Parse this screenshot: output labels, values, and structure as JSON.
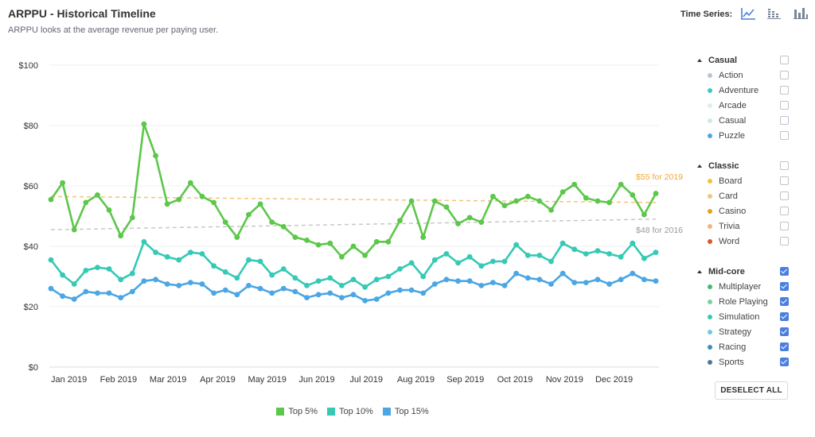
{
  "header": {
    "title": "ARPPU - Historical Timeline",
    "subtitle": "ARPPU looks at the average revenue per paying user.",
    "time_series_label": "Time Series:",
    "buttons": [
      {
        "icon": "line-chart-icon",
        "active": true
      },
      {
        "icon": "stacked-bar-chart-icon",
        "active": false
      },
      {
        "icon": "bar-chart-icon",
        "active": false
      }
    ]
  },
  "colors": {
    "top5": "#5cc74a",
    "top10": "#36c9b5",
    "top15": "#4ba6e3",
    "trend2019": "#f5c27a",
    "trend2016": "#c8c8c8",
    "trend2019_label": "#f0a830",
    "accent": "#4a7fe0"
  },
  "chart_data": {
    "type": "line",
    "title": "ARPPU - Historical Timeline",
    "ylim": [
      0,
      100
    ],
    "y_ticks": [
      "$0",
      "$20",
      "$40",
      "$60",
      "$80",
      "$100"
    ],
    "x_tick_labels": [
      "Jan 2019",
      "Feb 2019",
      "Mar 2019",
      "Apr 2019",
      "May 2019",
      "Jun 2019",
      "Jul 2019",
      "Aug 2019",
      "Sep 2019",
      "Oct 2019",
      "Nov 2019",
      "Dec 2019"
    ],
    "grid": true,
    "legend_position": "bottom",
    "series": [
      {
        "name": "Top 5%",
        "color": "#5cc74a",
        "values": [
          55.5,
          61,
          45.5,
          54.5,
          57,
          52,
          43.5,
          49.5,
          80.5,
          70,
          54,
          55.5,
          61,
          56.5,
          54.5,
          48,
          43,
          50.5,
          54,
          48,
          46.5,
          43,
          42,
          40.5,
          41,
          36.5,
          40,
          37,
          41.5,
          41.5,
          48.5,
          55,
          43,
          55,
          53,
          47.5,
          49.5,
          48,
          56.5,
          53.5,
          55,
          56.5,
          55,
          52,
          58,
          60.5,
          56,
          55,
          54.5,
          60.5,
          57,
          50.5,
          57.5
        ]
      },
      {
        "name": "Top 10%",
        "color": "#36c9b5",
        "values": [
          35.5,
          30.5,
          27.5,
          32,
          33,
          32.5,
          29,
          31,
          41.5,
          38,
          36.5,
          35.5,
          38,
          37.5,
          33.5,
          31.5,
          29.5,
          35.5,
          35,
          30.5,
          32.5,
          29.5,
          27,
          28.5,
          29.5,
          27,
          29,
          26.5,
          29,
          30,
          32.5,
          34.5,
          30,
          35.5,
          37.5,
          34.5,
          36.5,
          33.5,
          35,
          35,
          40.5,
          37,
          37,
          35,
          41,
          39,
          37.5,
          38.5,
          37.5,
          36.5,
          41,
          36,
          38
        ]
      },
      {
        "name": "Top 15%",
        "color": "#4ba6e3",
        "values": [
          26,
          23.5,
          22.5,
          25,
          24.5,
          24.5,
          23,
          25,
          28.5,
          29,
          27.5,
          27,
          28,
          27.5,
          24.5,
          25.5,
          24,
          27,
          26,
          24.5,
          26,
          25,
          23,
          24,
          24.5,
          23,
          24,
          22,
          22.5,
          24.5,
          25.5,
          25.5,
          24.5,
          27.5,
          29,
          28.5,
          28.5,
          27,
          28,
          27,
          31,
          29.5,
          29,
          27.5,
          31,
          28,
          28,
          29,
          27.5,
          29,
          31,
          29,
          28.5
        ]
      }
    ],
    "trend_lines": [
      {
        "label": "$55 for 2019",
        "color": "#f5c27a",
        "label_color": "#f0a830",
        "start": 56.5,
        "end": 54.5
      },
      {
        "label": "$48 for 2016",
        "color": "#c8c8c8",
        "label_color": "#999999",
        "start": 45.5,
        "end": 49
      }
    ]
  },
  "legend": [
    {
      "label": "Top 5%",
      "color": "#5cc74a"
    },
    {
      "label": "Top 10%",
      "color": "#36c9b5"
    },
    {
      "label": "Top 15%",
      "color": "#4ba6e3"
    }
  ],
  "panel": {
    "groups": [
      {
        "name": "Casual",
        "checked": false,
        "items": [
          {
            "label": "Action",
            "color": "#b8c4d4",
            "checked": false
          },
          {
            "label": "Adventure",
            "color": "#3fc7c7",
            "checked": false
          },
          {
            "label": "Arcade",
            "color": "#d8f0ee",
            "checked": false
          },
          {
            "label": "Casual",
            "color": "#c8ece2",
            "checked": false
          },
          {
            "label": "Puzzle",
            "color": "#4ba6e3",
            "checked": false
          }
        ]
      },
      {
        "name": "Classic",
        "checked": false,
        "items": [
          {
            "label": "Board",
            "color": "#f5c040",
            "checked": false
          },
          {
            "label": "Card",
            "color": "#e9c88a",
            "checked": false
          },
          {
            "label": "Casino",
            "color": "#e8a020",
            "checked": false
          },
          {
            "label": "Trivia",
            "color": "#f5b08a",
            "checked": false
          },
          {
            "label": "Word",
            "color": "#e0552a",
            "checked": false
          }
        ]
      },
      {
        "name": "Mid-core",
        "checked": true,
        "items": [
          {
            "label": "Multiplayer",
            "color": "#4ab86a",
            "checked": true
          },
          {
            "label": "Role Playing",
            "color": "#7ad09a",
            "checked": true
          },
          {
            "label": "Simulation",
            "color": "#36c9b5",
            "checked": true
          },
          {
            "label": "Strategy",
            "color": "#6cc8e8",
            "checked": true
          },
          {
            "label": "Racing",
            "color": "#3a8fc0",
            "checked": true
          },
          {
            "label": "Sports",
            "color": "#4a7a9a",
            "checked": true
          }
        ]
      }
    ],
    "deselect_label": "DESELECT ALL"
  }
}
